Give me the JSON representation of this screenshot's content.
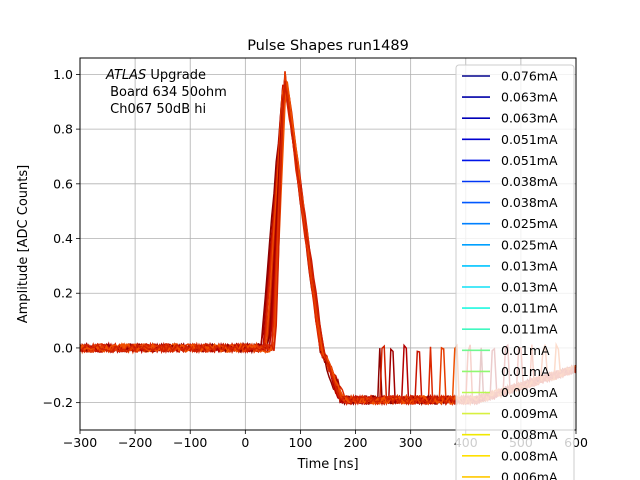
{
  "chart_data": {
    "type": "line",
    "title": "Pulse Shapes run1489",
    "xlabel": "Time [ns]",
    "ylabel": "Amplitude [ADC Counts]",
    "xlim": [
      -300,
      600
    ],
    "ylim": [
      -0.3,
      1.06
    ],
    "xticks": [
      -300,
      -200,
      -100,
      0,
      100,
      200,
      300,
      400,
      500,
      600
    ],
    "yticks": [
      -0.2,
      0.0,
      0.2,
      0.4,
      0.6,
      0.8,
      1.0
    ],
    "xtick_labels": [
      "−300",
      "−200",
      "−100",
      "0",
      "100",
      "200",
      "300",
      "400",
      "500",
      "600"
    ],
    "ytick_labels": [
      "−0.2",
      "0.0",
      "0.2",
      "0.4",
      "0.6",
      "0.8",
      "1.0"
    ],
    "grid": true,
    "annotation": {
      "italic": "ATLAS",
      "rest": " Upgrade",
      "lines": [
        " Board 634 50ohm",
        " Ch067 50dB hi"
      ]
    },
    "legend_position": "right",
    "pulse_shape": {
      "baseline": 0.0,
      "peak": 1.0,
      "undershoot": -0.19,
      "rise_start_min": 28,
      "rise_start_max": 55,
      "peak_time": 72,
      "fall_zero_time": 135,
      "undershoot_time": 170
    },
    "series": [
      {
        "name": "0.076mA",
        "color": "#00008b"
      },
      {
        "name": "0.063mA",
        "color": "#0000a8"
      },
      {
        "name": "0.063mA",
        "color": "#0000b8"
      },
      {
        "name": "0.051mA",
        "color": "#0000d0"
      },
      {
        "name": "0.051mA",
        "color": "#0014e8"
      },
      {
        "name": "0.038mA",
        "color": "#0036f5"
      },
      {
        "name": "0.038mA",
        "color": "#0058ff"
      },
      {
        "name": "0.025mA",
        "color": "#0080ff"
      },
      {
        "name": "0.025mA",
        "color": "#00a0ff"
      },
      {
        "name": "0.013mA",
        "color": "#00c4ff"
      },
      {
        "name": "0.013mA",
        "color": "#10e0f5"
      },
      {
        "name": "0.011mA",
        "color": "#20f8e0"
      },
      {
        "name": "0.011mA",
        "color": "#40f8c0"
      },
      {
        "name": "0.01mA",
        "color": "#70f890"
      },
      {
        "name": "0.01mA",
        "color": "#90f870"
      },
      {
        "name": "0.009mA",
        "color": "#b8f850"
      },
      {
        "name": "0.009mA",
        "color": "#d8f040"
      },
      {
        "name": "0.008mA",
        "color": "#f0e800"
      },
      {
        "name": "0.008mA",
        "color": "#ffe000"
      },
      {
        "name": "0.006mA",
        "color": "#ffc800"
      }
    ]
  }
}
